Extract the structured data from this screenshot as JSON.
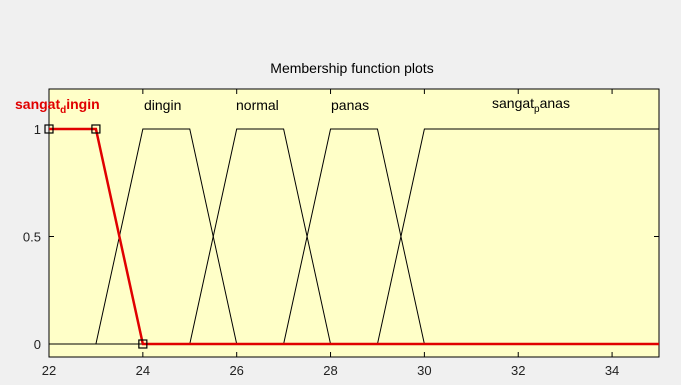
{
  "chart_data": {
    "type": "line",
    "title": "Membership function plots",
    "xlim": [
      22,
      35
    ],
    "ylim": [
      0,
      1
    ],
    "x_ticks": [
      22,
      24,
      26,
      28,
      30,
      32,
      34
    ],
    "y_ticks": [
      0,
      0.5,
      1
    ],
    "background": "#ffffc8",
    "series": [
      {
        "name": "sangat dingin",
        "label_main": "sangat",
        "label_sub": "d",
        "label_rest": "ingin",
        "color": "#e00000",
        "selected": true,
        "x": [
          22,
          23,
          24,
          35
        ],
        "y": [
          1,
          1,
          0,
          0
        ]
      },
      {
        "name": "dingin",
        "color": "#000000",
        "x": [
          22,
          23,
          24,
          25,
          26,
          35
        ],
        "y": [
          0,
          0,
          1,
          1,
          0,
          0
        ]
      },
      {
        "name": "normal",
        "color": "#000000",
        "x": [
          22,
          25,
          26,
          27,
          28,
          35
        ],
        "y": [
          0,
          0,
          1,
          1,
          0,
          0
        ]
      },
      {
        "name": "panas",
        "color": "#000000",
        "x": [
          22,
          27,
          28,
          29,
          30,
          35
        ],
        "y": [
          0,
          0,
          1,
          1,
          0,
          0
        ]
      },
      {
        "name": "sangat panas",
        "label_main": "sangat",
        "label_sub": "p",
        "label_rest": "anas",
        "color": "#000000",
        "x": [
          22,
          29,
          30,
          35
        ],
        "y": [
          0,
          0,
          1,
          1
        ]
      }
    ]
  }
}
